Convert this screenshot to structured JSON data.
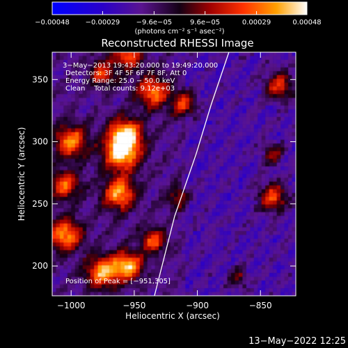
{
  "chart_data": {
    "type": "heatmap",
    "title": "Reconstructed RHESSI Image",
    "xlabel": "Heliocentric X (arcsec)",
    "ylabel": "Heliocentric Y (arcsec)",
    "xlim": [
      -1015,
      -822
    ],
    "ylim": [
      176,
      372
    ],
    "xticks": [
      -1000,
      -950,
      -900,
      -850
    ],
    "yticks": [
      200,
      250,
      300,
      350
    ],
    "x_tick_labels": [
      "−1000",
      "−950",
      "−900",
      "−850"
    ],
    "y_tick_labels": [
      "200",
      "250",
      "300",
      "350"
    ],
    "colorbar": {
      "range": [
        -0.00048,
        0.00048
      ],
      "ticks": [
        -0.00048,
        -0.00029,
        -9.6e-05,
        9.6e-05,
        0.00029,
        0.00048
      ],
      "tick_labels": [
        "−0.00048",
        "−0.00029",
        "−9.6e−05",
        "9.6e−05",
        "0.00029",
        "0.00048"
      ],
      "units_label": "(photons cm⁻² s⁻¹ asec⁻²)"
    },
    "annotations": [
      "3−May−2013 19:43:20.000 to 19:49:20.000",
      "Detectors: 3F 4F 5F 6F 7F 8F, Att 0",
      "Energy Range: 25.0 − 50.0 keV",
      "Clean    Total counts: 9.12e+03"
    ],
    "peak_label": "Position of Peak = [−951,305]",
    "peak_position": [
      -951,
      305
    ],
    "limb_line": [
      [
        -934,
        176
      ],
      [
        -918,
        240
      ],
      [
        -901,
        290
      ],
      [
        -889,
        330
      ],
      [
        -875,
        372
      ]
    ],
    "bright_regions": [
      {
        "x": -957,
        "y": 305,
        "sigma": 9,
        "level": 1.0
      },
      {
        "x": -960,
        "y": 290,
        "sigma": 10,
        "level": 0.9
      },
      {
        "x": -962,
        "y": 258,
        "sigma": 9,
        "level": 0.85
      },
      {
        "x": -1000,
        "y": 300,
        "sigma": 9,
        "level": 0.8
      },
      {
        "x": -1005,
        "y": 265,
        "sigma": 8,
        "level": 0.7
      },
      {
        "x": -1005,
        "y": 225,
        "sigma": 9,
        "level": 0.85
      },
      {
        "x": -975,
        "y": 195,
        "sigma": 9,
        "level": 0.85
      },
      {
        "x": -955,
        "y": 200,
        "sigma": 8,
        "level": 0.9
      },
      {
        "x": -935,
        "y": 220,
        "sigma": 7,
        "level": 0.65
      },
      {
        "x": -935,
        "y": 340,
        "sigma": 9,
        "level": 0.75
      },
      {
        "x": -910,
        "y": 330,
        "sigma": 7,
        "level": 0.6
      },
      {
        "x": -975,
        "y": 355,
        "sigma": 7,
        "level": 0.6
      },
      {
        "x": -915,
        "y": 255,
        "sigma": 6,
        "level": 0.45
      },
      {
        "x": -840,
        "y": 255,
        "sigma": 8,
        "level": 0.7
      },
      {
        "x": -835,
        "y": 345,
        "sigma": 8,
        "level": 0.65
      },
      {
        "x": -840,
        "y": 290,
        "sigma": 6,
        "level": 0.5
      },
      {
        "x": -868,
        "y": 190,
        "sigma": 6,
        "level": 0.4
      },
      {
        "x": -955,
        "y": 370,
        "sigma": 8,
        "level": 0.7
      }
    ],
    "grid": false
  },
  "footer": {
    "timestamp": "13−May−2022 12:25"
  }
}
